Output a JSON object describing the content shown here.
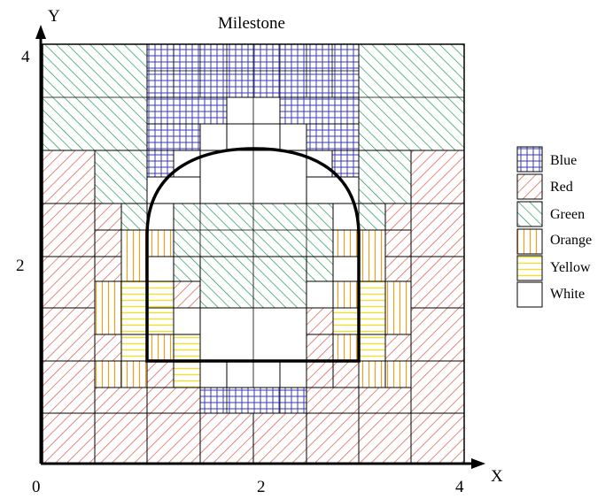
{
  "title": "Milestone",
  "axes": {
    "x_label": "X",
    "y_label": "Y",
    "x_ticks": [
      "0",
      "2",
      "4"
    ],
    "y_ticks": [
      "2",
      "4"
    ]
  },
  "legend": [
    {
      "label": "Blue",
      "pattern": "grid",
      "color": "#3a3ab8"
    },
    {
      "label": "Red",
      "pattern": "diag-left",
      "color": "#d9574a"
    },
    {
      "label": "Green",
      "pattern": "diag-right",
      "color": "#1f9a5a"
    },
    {
      "label": "Orange",
      "pattern": "vertical",
      "color": "#f0a020"
    },
    {
      "label": "Yellow",
      "pattern": "horizontal",
      "color": "#f2df30"
    },
    {
      "label": "White",
      "pattern": "none",
      "color": "#ffffff"
    }
  ],
  "colors": {
    "outline": "#000000",
    "background": "#ffffff"
  }
}
